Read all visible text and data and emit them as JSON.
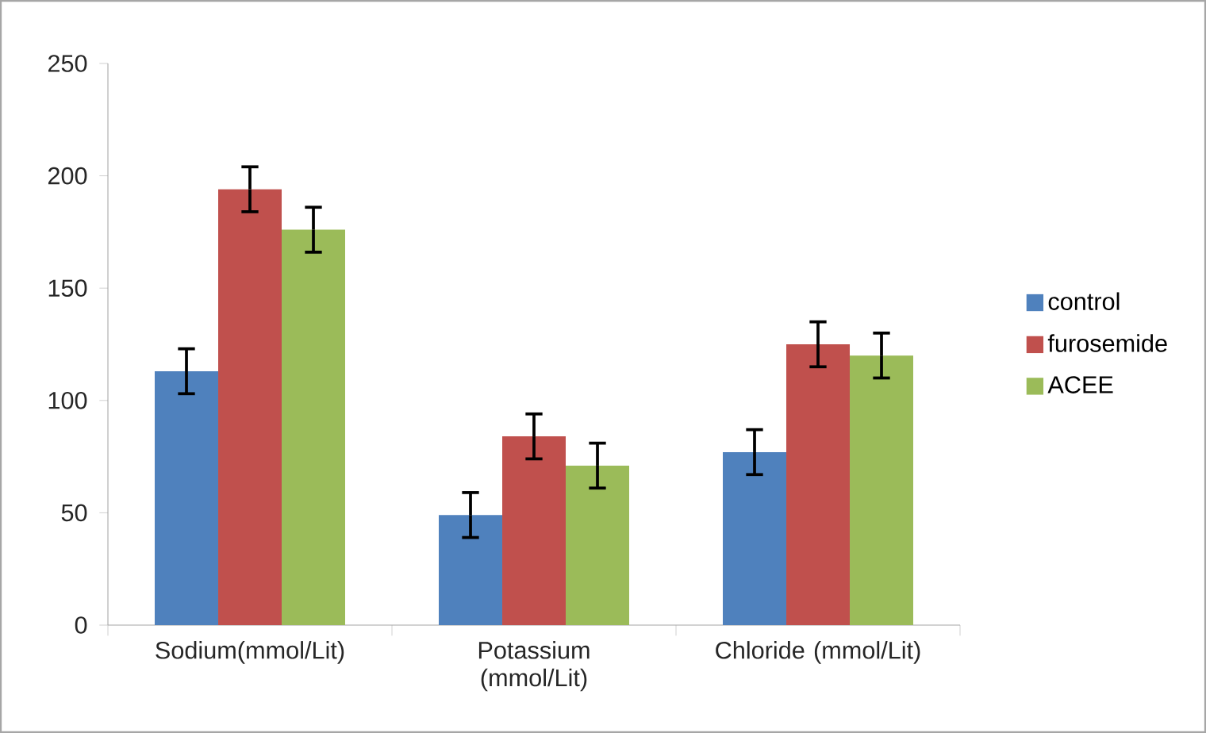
{
  "chart_data": {
    "type": "bar",
    "categories": [
      "Sodium(mmol/Lit)",
      "Potassium (mmol/Lit)",
      "Chloride (mmol/Lit)"
    ],
    "series": [
      {
        "name": "control",
        "color": "#4f81bd",
        "values": [
          113,
          49,
          77
        ],
        "errors": [
          10,
          10,
          10
        ]
      },
      {
        "name": "furosemide",
        "color": "#c0504d",
        "values": [
          194,
          84,
          125
        ],
        "errors": [
          10,
          10,
          10
        ]
      },
      {
        "name": "ACEE",
        "color": "#9bbb59",
        "values": [
          176,
          71,
          120
        ],
        "errors": [
          10,
          10,
          10
        ]
      }
    ],
    "ylim": [
      0,
      250
    ],
    "yticks": [
      0,
      50,
      100,
      150,
      200,
      250
    ],
    "grid": false,
    "legend": "right"
  }
}
